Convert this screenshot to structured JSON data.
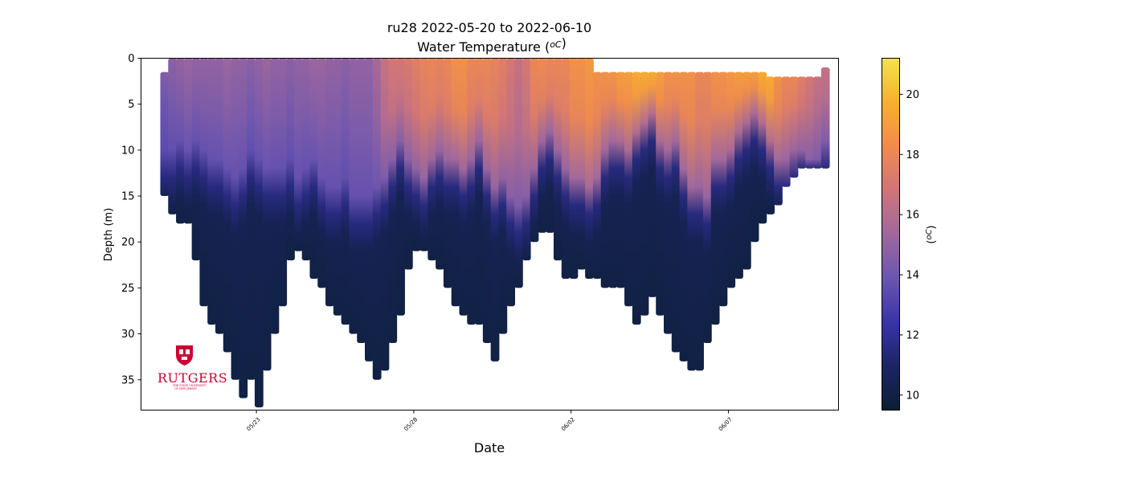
{
  "chart_data": {
    "type": "scatter",
    "title": "ru28 2022-05-20 to 2022-06-10",
    "subtitle": "Water Temperature (",
    "subtitle_unit": "oC",
    "subtitle_end": ")",
    "xlabel": "Date",
    "ylabel": "Depth (m)",
    "colorbar_label_unit": "oC",
    "colorbar_label_open": "(",
    "colorbar_label_close": ")",
    "xlim": [
      "2022-05-19T08:00",
      "2022-06-10T12:00"
    ],
    "ylim": [
      38.3,
      0
    ],
    "y_inverted": true,
    "grid": false,
    "y_ticks": [
      "0",
      "5",
      "10",
      "15",
      "20",
      "25",
      "30",
      "35"
    ],
    "x_ticks": [
      {
        "date": "2022-05-23",
        "label": "05/23"
      },
      {
        "date": "2022-05-28",
        "label": "05/28"
      },
      {
        "date": "2022-06-02",
        "label": "06/02"
      },
      {
        "date": "2022-06-07",
        "label": "06/07"
      }
    ],
    "colorbar": {
      "range": [
        9.5,
        21.2
      ],
      "ticks": [
        "10",
        "12",
        "14",
        "16",
        "18",
        "20"
      ],
      "colormap": [
        "#0c1f33",
        "#1c2466",
        "#3a34a8",
        "#6b55b0",
        "#a0689d",
        "#d07479",
        "#f08b4d",
        "#f7b02d",
        "#f2e34b"
      ]
    },
    "series": [
      {
        "x": [
          "2022-05-20T02:00",
          "2022-05-20T08:00",
          "2022-05-20T14:00",
          "2022-05-20T20:00",
          "2022-05-21T02:00",
          "2022-05-21T08:00",
          "2022-05-21T14:00",
          "2022-05-21T20:00",
          "2022-05-22T02:00",
          "2022-05-22T08:00",
          "2022-05-22T14:00",
          "2022-05-22T20:00",
          "2022-05-23T02:00",
          "2022-05-23T08:00",
          "2022-05-23T14:00",
          "2022-05-23T20:00",
          "2022-05-24T02:00",
          "2022-05-24T08:00",
          "2022-05-24T14:00",
          "2022-05-24T20:00",
          "2022-05-25T02:00",
          "2022-05-25T08:00",
          "2022-05-25T14:00",
          "2022-05-25T20:00",
          "2022-05-26T02:00",
          "2022-05-26T08:00",
          "2022-05-26T14:00",
          "2022-05-26T20:00",
          "2022-05-27T02:00",
          "2022-05-27T08:00",
          "2022-05-27T14:00",
          "2022-05-27T20:00",
          "2022-05-28T02:00",
          "2022-05-28T08:00",
          "2022-05-28T14:00",
          "2022-05-28T20:00",
          "2022-05-29T02:00",
          "2022-05-29T08:00",
          "2022-05-29T14:00",
          "2022-05-29T20:00",
          "2022-05-30T02:00",
          "2022-05-30T08:00",
          "2022-05-30T14:00",
          "2022-05-30T20:00",
          "2022-05-31T02:00",
          "2022-05-31T08:00",
          "2022-05-31T14:00",
          "2022-05-31T20:00",
          "2022-06-01T02:00",
          "2022-06-01T08:00",
          "2022-06-01T14:00",
          "2022-06-01T20:00",
          "2022-06-02T02:00",
          "2022-06-02T08:00",
          "2022-06-02T14:00",
          "2022-06-02T20:00",
          "2022-06-03T02:00",
          "2022-06-03T08:00",
          "2022-06-03T14:00",
          "2022-06-03T20:00",
          "2022-06-04T02:00",
          "2022-06-04T08:00",
          "2022-06-04T14:00",
          "2022-06-04T20:00",
          "2022-06-05T02:00",
          "2022-06-05T08:00",
          "2022-06-05T14:00",
          "2022-06-05T20:00",
          "2022-06-06T02:00",
          "2022-06-06T08:00",
          "2022-06-06T14:00",
          "2022-06-06T20:00",
          "2022-06-07T02:00",
          "2022-06-07T08:00",
          "2022-06-07T14:00",
          "2022-06-07T20:00",
          "2022-06-08T02:00",
          "2022-06-08T08:00",
          "2022-06-08T14:00",
          "2022-06-08T20:00",
          "2022-06-09T02:00",
          "2022-06-09T08:00",
          "2022-06-09T14:00",
          "2022-06-09T20:00",
          "2022-06-10T02:00"
        ],
        "max_depth": [
          15,
          17,
          18,
          18,
          22,
          27,
          29,
          30,
          32,
          35,
          37,
          35,
          38,
          34,
          30,
          27,
          22,
          21,
          22,
          24,
          25,
          27,
          28,
          29,
          30,
          31,
          33,
          35,
          34,
          31,
          28,
          23,
          21,
          21,
          22,
          23,
          25,
          27,
          28,
          29,
          29,
          31,
          33,
          30,
          27,
          25,
          22,
          20,
          19,
          19,
          22,
          24,
          24,
          23,
          24,
          24,
          25,
          25,
          25,
          27,
          29,
          28,
          26,
          28,
          30,
          32,
          33,
          34,
          34,
          31,
          29,
          27,
          25,
          24,
          23,
          20,
          18,
          17,
          16,
          14,
          13,
          12,
          12,
          12,
          12
        ],
        "min_depth": [
          1.5,
          0,
          0,
          0,
          0,
          0,
          0,
          0,
          0,
          0,
          0,
          0,
          0,
          0,
          0,
          0,
          0,
          0,
          0,
          0,
          0,
          0,
          0,
          0,
          0,
          0,
          0,
          0,
          0,
          0,
          0,
          0,
          0,
          0,
          0,
          0,
          0,
          0,
          0,
          0,
          0,
          0,
          0,
          0,
          0,
          0,
          0,
          0,
          0,
          0,
          0,
          0,
          0,
          0,
          0,
          1.5,
          1.5,
          1.5,
          1.5,
          1.5,
          1.5,
          1.5,
          1.5,
          1.5,
          1.5,
          1.5,
          1.5,
          1.5,
          1.5,
          1.5,
          1.5,
          1.5,
          1.5,
          1.5,
          1.5,
          1.5,
          1.5,
          2,
          2,
          2,
          2,
          2,
          2,
          2,
          1
        ],
        "thermocline_depth": [
          10,
          10,
          9,
          10,
          9,
          10,
          11,
          11,
          12,
          13,
          12,
          10,
          11,
          12,
          12,
          12,
          11,
          13,
          12,
          11,
          13,
          14,
          14,
          13,
          15,
          15,
          15,
          14,
          13,
          11,
          9,
          11,
          12,
          13,
          11,
          10,
          11,
          11,
          12,
          11,
          9,
          12,
          14,
          13,
          15,
          16,
          15,
          12,
          9,
          8,
          10,
          12,
          13,
          13,
          14,
          13,
          10,
          9,
          9,
          10,
          8,
          7,
          6,
          9,
          10,
          9,
          12,
          14,
          14,
          15,
          11,
          11,
          10,
          8,
          7,
          6,
          7,
          9,
          11,
          11,
          10,
          10,
          11,
          11,
          9
        ],
        "surface_temp": [
          14.5,
          14.8,
          15.0,
          15.2,
          15.0,
          15.0,
          15.0,
          15.0,
          15.2,
          15.0,
          15.0,
          14.8,
          15.0,
          15.2,
          15.0,
          15.0,
          14.8,
          15.0,
          15.0,
          15.2,
          15.2,
          15.0,
          15.0,
          14.8,
          15.0,
          15.0,
          15.0,
          15.5,
          16.5,
          17.0,
          17.0,
          17.2,
          17.5,
          17.8,
          18.0,
          17.8,
          18.0,
          18.5,
          18.5,
          18.0,
          18.0,
          18.0,
          17.8,
          17.5,
          17.0,
          16.5,
          17.0,
          18.0,
          18.2,
          18.0,
          18.0,
          18.0,
          18.5,
          18.5,
          18.8,
          18.5,
          18.5,
          18.5,
          19.0,
          19.0,
          19.5,
          19.5,
          19.5,
          19.0,
          18.5,
          18.5,
          18.5,
          18.5,
          18.0,
          18.0,
          18.5,
          18.5,
          18.8,
          19.0,
          19.0,
          19.0,
          19.5,
          19.5,
          18.5,
          18.0,
          18.0,
          17.5,
          17.0,
          16.5,
          16.5
        ],
        "bottom_temp": 10.0
      }
    ]
  },
  "logo": {
    "wordmark": "RUTGERS",
    "tagline_1": "THE STATE UNIVERSITY",
    "tagline_2": "OF NEW JERSEY"
  }
}
